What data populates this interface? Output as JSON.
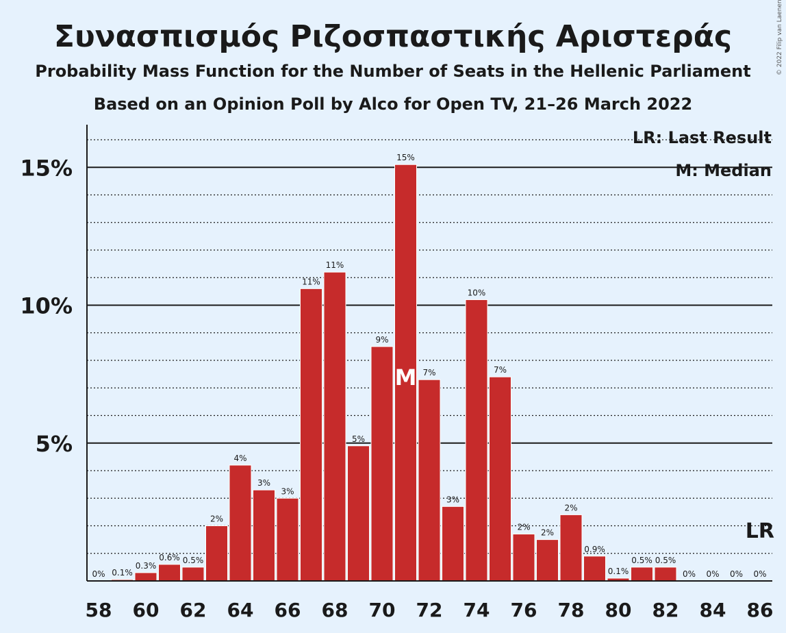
{
  "chart_data": {
    "type": "bar",
    "title": "Συνασπισμός Ριζοσπαστικής Αριστεράς",
    "subtitle": "Probability Mass Function for the Number of Seats in the Hellenic Parliament",
    "subtitle2": "Based on an Opinion Poll by Alco for Open TV, 21–26 March 2022",
    "copyright": "© 2022 Filip van Laenen",
    "categories": [
      58,
      59,
      60,
      61,
      62,
      63,
      64,
      65,
      66,
      67,
      68,
      69,
      70,
      71,
      72,
      73,
      74,
      75,
      76,
      77,
      78,
      79,
      80,
      81,
      82,
      83,
      84,
      85,
      86
    ],
    "values": [
      0,
      0.05,
      0.3,
      0.6,
      0.5,
      2.0,
      4.2,
      3.3,
      3.0,
      10.6,
      11.2,
      4.9,
      8.5,
      15.1,
      7.3,
      2.7,
      10.2,
      7.4,
      1.7,
      1.5,
      2.4,
      0.9,
      0.1,
      0.5,
      0.5,
      0,
      0,
      0,
      0
    ],
    "labels": [
      "0%",
      "0.1%",
      "0.3%",
      "0.6%",
      "0.5%",
      "2%",
      "4%",
      "3%",
      "3%",
      "11%",
      "11%",
      "5%",
      "9%",
      "15%",
      "7%",
      "3%",
      "10%",
      "7%",
      "2%",
      "2%",
      "2%",
      "0.9%",
      "0.1%",
      "0.5%",
      "0.5%",
      "0%",
      "0%",
      "0%",
      "0%"
    ],
    "x_tick_labels": [
      "58",
      "60",
      "62",
      "64",
      "66",
      "68",
      "70",
      "72",
      "74",
      "76",
      "78",
      "80",
      "82",
      "84",
      "86"
    ],
    "y_tick_labels": [
      "5%",
      "10%",
      "15%"
    ],
    "ylim": [
      0,
      16.5
    ],
    "median_seat": 71,
    "median_marker": "M",
    "last_result_seat": 86,
    "last_result_marker": "LR",
    "legend": [
      "LR: Last Result",
      "M: Median"
    ],
    "legend_position": "top-right",
    "bar_color": "#c62b2b",
    "background_color": "#e6f2fd"
  }
}
